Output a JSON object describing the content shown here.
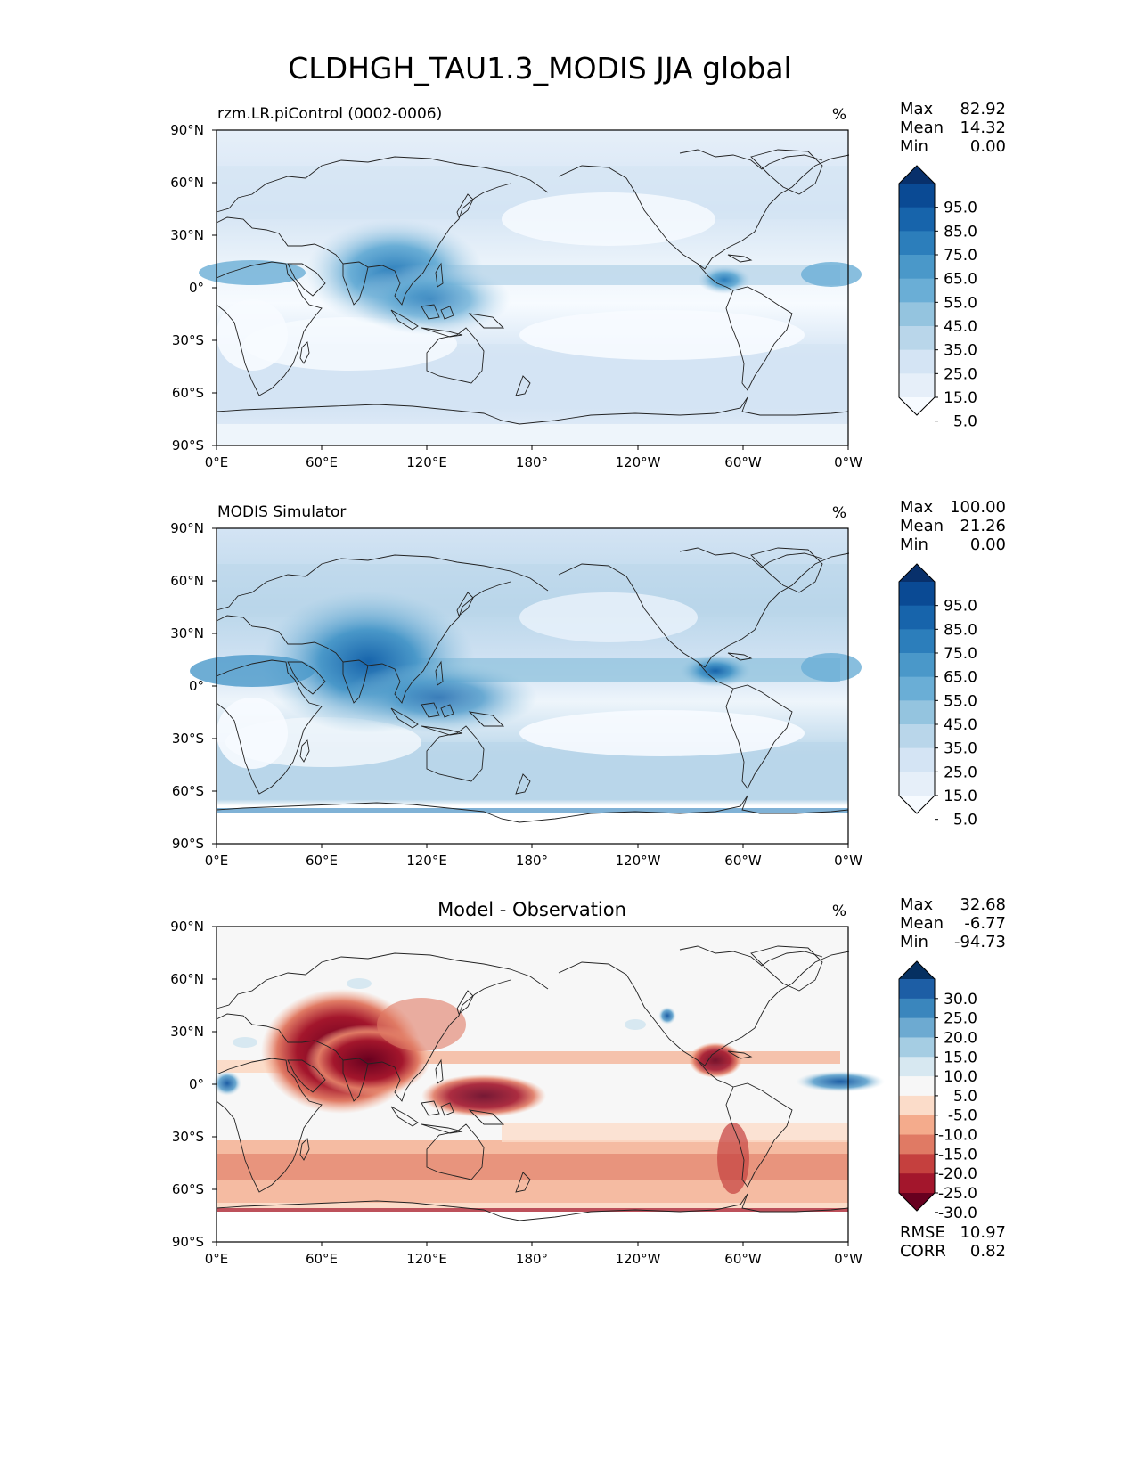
{
  "figure": {
    "title": "CLDHGH_TAU1.3_MODIS JJA global"
  },
  "axes": {
    "x_ticks": [
      "0°E",
      "60°E",
      "120°E",
      "180°",
      "120°W",
      "60°W",
      "0°W"
    ],
    "y_ticks": [
      "90°N",
      "60°N",
      "30°N",
      "0°",
      "30°S",
      "60°S",
      "90°S"
    ]
  },
  "panels": [
    {
      "id": "model",
      "left_title": "rzm.LR.piControl (0002-0006)",
      "center_title": "",
      "units": "%",
      "stats": [
        {
          "label": "Max",
          "value": "82.92"
        },
        {
          "label": "Mean",
          "value": "14.32"
        },
        {
          "label": "Min",
          "value": "0.00"
        }
      ],
      "colorbar": {
        "labels": [
          "95.0",
          "85.0",
          "75.0",
          "65.0",
          "55.0",
          "45.0",
          "35.0",
          "25.0",
          "15.0",
          "5.0"
        ],
        "colors": [
          "#08306b",
          "#0a4a94",
          "#1764ab",
          "#2c7ebb",
          "#4a98c9",
          "#6aaed6",
          "#94c4df",
          "#b9d6ea",
          "#d4e4f4",
          "#e6eff9",
          "#f7fbff"
        ]
      },
      "footer_stats": []
    },
    {
      "id": "obs",
      "left_title": "MODIS Simulator",
      "center_title": "",
      "units": "%",
      "stats": [
        {
          "label": "Max",
          "value": "100.00"
        },
        {
          "label": "Mean",
          "value": "21.26"
        },
        {
          "label": "Min",
          "value": "0.00"
        }
      ],
      "colorbar": {
        "labels": [
          "95.0",
          "85.0",
          "75.0",
          "65.0",
          "55.0",
          "45.0",
          "35.0",
          "25.0",
          "15.0",
          "5.0"
        ],
        "colors": [
          "#08306b",
          "#0a4a94",
          "#1764ab",
          "#2c7ebb",
          "#4a98c9",
          "#6aaed6",
          "#94c4df",
          "#b9d6ea",
          "#d4e4f4",
          "#e6eff9",
          "#f7fbff"
        ]
      },
      "footer_stats": []
    },
    {
      "id": "diff",
      "left_title": "",
      "center_title": "Model - Observation",
      "units": "%",
      "stats": [
        {
          "label": "Max",
          "value": "32.68"
        },
        {
          "label": "Mean",
          "value": "-6.77"
        },
        {
          "label": "Min",
          "value": "-94.73"
        }
      ],
      "colorbar": {
        "labels": [
          "30.0",
          "25.0",
          "20.0",
          "15.0",
          "10.0",
          "5.0",
          "-5.0",
          "-10.0",
          "-15.0",
          "-20.0",
          "-25.0",
          "-30.0"
        ],
        "colors": [
          "#053061",
          "#1d5ea5",
          "#3a86bd",
          "#6daad1",
          "#a5cde3",
          "#d7e8f1",
          "#f7f7f7",
          "#fbdcc9",
          "#f4ab8c",
          "#e07a64",
          "#c5403e",
          "#a3162c",
          "#67001f"
        ]
      },
      "footer_stats": [
        {
          "label": "RMSE",
          "value": "10.97"
        },
        {
          "label": "CORR",
          "value": "0.82"
        }
      ]
    }
  ]
}
